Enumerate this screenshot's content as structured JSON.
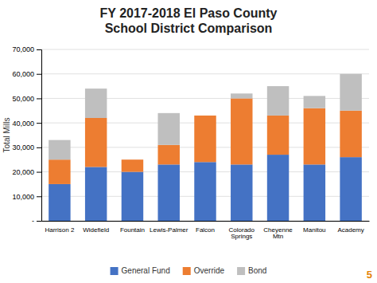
{
  "chart_data": {
    "type": "bar",
    "stacked": true,
    "title": "FY 2017-2018 El Paso County\nSchool District Comparison",
    "y_label": "Total Mills",
    "categories": [
      "Harrison 2",
      "Widefield",
      "Fountain",
      "Lewis-Palmer",
      "Falcon",
      "Colorado\nSprings",
      "Cheyenne\nMtn",
      "Manitou",
      "Academy"
    ],
    "series": [
      {
        "name": "General Fund",
        "color": "#4472C4",
        "values": [
          15000,
          22000,
          20000,
          23000,
          24000,
          23000,
          27000,
          23000,
          26000
        ]
      },
      {
        "name": "Override",
        "color": "#ED7D31",
        "values": [
          10000,
          20000,
          5000,
          8000,
          19000,
          27000,
          16000,
          23000,
          19000
        ]
      },
      {
        "name": "Bond",
        "color": "#BFBFBF",
        "values": [
          8000,
          12000,
          0,
          13000,
          0,
          2000,
          12000,
          5000,
          15000
        ]
      }
    ],
    "ylim": [
      0,
      70000
    ],
    "yticks": [
      {
        "value": 0,
        "label": "-"
      },
      {
        "value": 10000,
        "label": "10,000"
      },
      {
        "value": 20000,
        "label": "20,000"
      },
      {
        "value": 30000,
        "label": "30,000"
      },
      {
        "value": 40000,
        "label": "40,000"
      },
      {
        "value": 50000,
        "label": "50,000"
      },
      {
        "value": 60000,
        "label": "60,000"
      },
      {
        "value": 70000,
        "label": "70,000"
      }
    ],
    "grid": true,
    "legend": "bottom",
    "annotations": [
      "5"
    ]
  }
}
